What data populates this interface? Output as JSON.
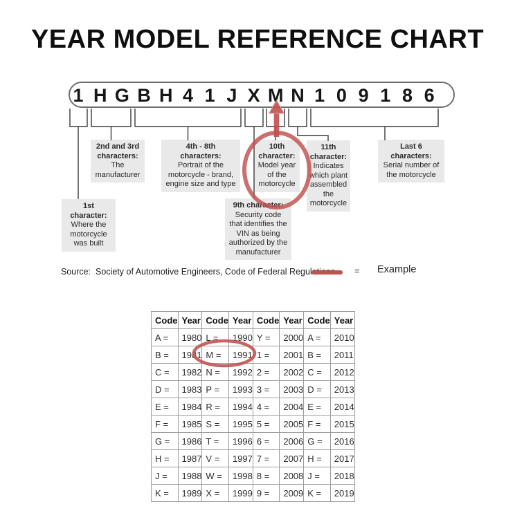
{
  "page": {
    "title": "YEAR MODEL REFERENCE CHART"
  },
  "vin": {
    "characters": [
      "1",
      "H",
      "G",
      "B",
      "H",
      "4",
      "1",
      "J",
      "X",
      "M",
      "N",
      "1",
      "0",
      "9",
      "1",
      "8",
      "6"
    ],
    "highlighted_character": "M",
    "highlighted_index": 9
  },
  "callouts": [
    {
      "id": "first",
      "title": [
        "1st",
        "character:"
      ],
      "body": [
        "Where the",
        "motorcycle",
        "was built"
      ]
    },
    {
      "id": "second-third",
      "title": [
        "2nd and 3rd",
        "characters:"
      ],
      "body": [
        "The",
        "manufacturer"
      ]
    },
    {
      "id": "fourth-eighth",
      "title": [
        "4th - 8th",
        "characters:"
      ],
      "body": [
        "Portrait of the",
        "motorcycle - brand,",
        "engine size and type"
      ]
    },
    {
      "id": "ninth",
      "title": [
        "9th character:"
      ],
      "body": [
        "Security code",
        "that identifies the",
        "VIN as being",
        "authorized by the",
        "manufacturer"
      ]
    },
    {
      "id": "tenth",
      "title": [
        "10th",
        "character:"
      ],
      "body": [
        "Model year",
        "of the",
        "motorcycle"
      ]
    },
    {
      "id": "eleventh",
      "title": [
        "11th",
        "character:"
      ],
      "body": [
        "Indicates",
        "which plant",
        "assembled",
        "the",
        "motorcycle"
      ]
    },
    {
      "id": "last-six",
      "title": [
        "Last 6",
        "characters:"
      ],
      "body": [
        "Serial number of",
        "the motorcycle"
      ]
    }
  ],
  "legend": {
    "source": "Source:  Society of Automotive Engineers, Code of Federal Regulations",
    "equals": "=",
    "example": "Example"
  },
  "colors": {
    "example_red": "#c0504d",
    "swatch_red": "#b9544e"
  },
  "table": {
    "headers": [
      "Code",
      "Year",
      "Code",
      "Year",
      "Code",
      "Year",
      "Code",
      "Year"
    ],
    "rows": [
      [
        "A =",
        "1980",
        "L =",
        "1990",
        "Y =",
        "2000",
        "A =",
        "2010"
      ],
      [
        "B =",
        "1981",
        "M =",
        "1991",
        "1 =",
        "2001",
        "B =",
        "2011"
      ],
      [
        "C =",
        "1982",
        "N =",
        "1992",
        "2 =",
        "2002",
        "C =",
        "2012"
      ],
      [
        "D =",
        "1983",
        "P =",
        "1993",
        "3 =",
        "2003",
        "D =",
        "2013"
      ],
      [
        "E =",
        "1984",
        "R =",
        "1994",
        "4 =",
        "2004",
        "E =",
        "2014"
      ],
      [
        "F =",
        "1985",
        "S =",
        "1995",
        "5 =",
        "2005",
        "F =",
        "2015"
      ],
      [
        "G =",
        "1986",
        "T =",
        "1996",
        "6 =",
        "2006",
        "G =",
        "2016"
      ],
      [
        "H =",
        "1987",
        "V =",
        "1997",
        "7 =",
        "2007",
        "H =",
        "2017"
      ],
      [
        "J =",
        "1988",
        "W =",
        "1998",
        "8 =",
        "2008",
        "J =",
        "2018"
      ],
      [
        "K =",
        "1989",
        "X =",
        "1999",
        "9 =",
        "2009",
        "K =",
        "2019"
      ]
    ],
    "highlighted_cell": {
      "code": "M =",
      "year": "1991",
      "row_index": 1
    }
  }
}
